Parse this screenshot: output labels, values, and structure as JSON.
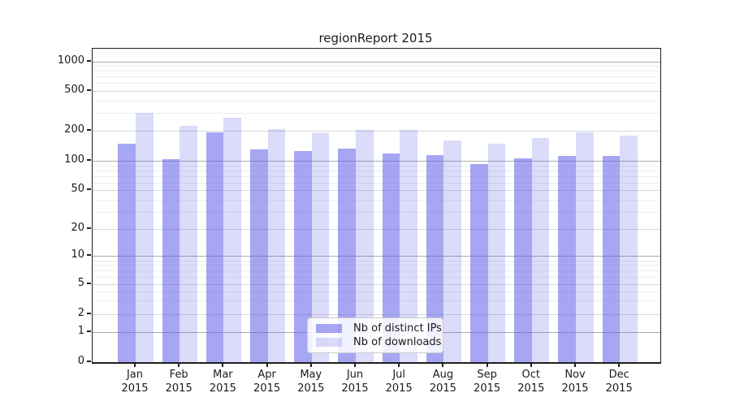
{
  "title": "regionReport 2015",
  "chart_data": {
    "type": "bar",
    "title": "regionReport 2015",
    "categories": [
      "Jan 2015",
      "Feb 2015",
      "Mar 2015",
      "Apr 2015",
      "May 2015",
      "Jun 2015",
      "Jul 2015",
      "Aug 2015",
      "Sep 2015",
      "Oct 2015",
      "Nov 2015",
      "Dec 2015"
    ],
    "series": [
      {
        "name": "Nb of distinct IPs",
        "color": "#a5a5f1",
        "color_rgba": "rgba(92,92,234,0.55)",
        "values": [
          148,
          104,
          193,
          130,
          126,
          133,
          120,
          115,
          94,
          106,
          112,
          112
        ]
      },
      {
        "name": "Nb of downloads",
        "color": "#dbdbfa",
        "color_rgba": "rgba(92,92,234,0.22)",
        "values": [
          301,
          224,
          272,
          206,
          188,
          205,
          202,
          161,
          148,
          168,
          192,
          180
        ]
      }
    ],
    "yscale": "symlog",
    "yticks": [
      0,
      1,
      2,
      5,
      10,
      20,
      50,
      100,
      200,
      500,
      1000
    ],
    "ylim": [
      0,
      1400
    ],
    "grid": true,
    "legend_position": "lower center",
    "xlabel": "",
    "ylabel": ""
  }
}
